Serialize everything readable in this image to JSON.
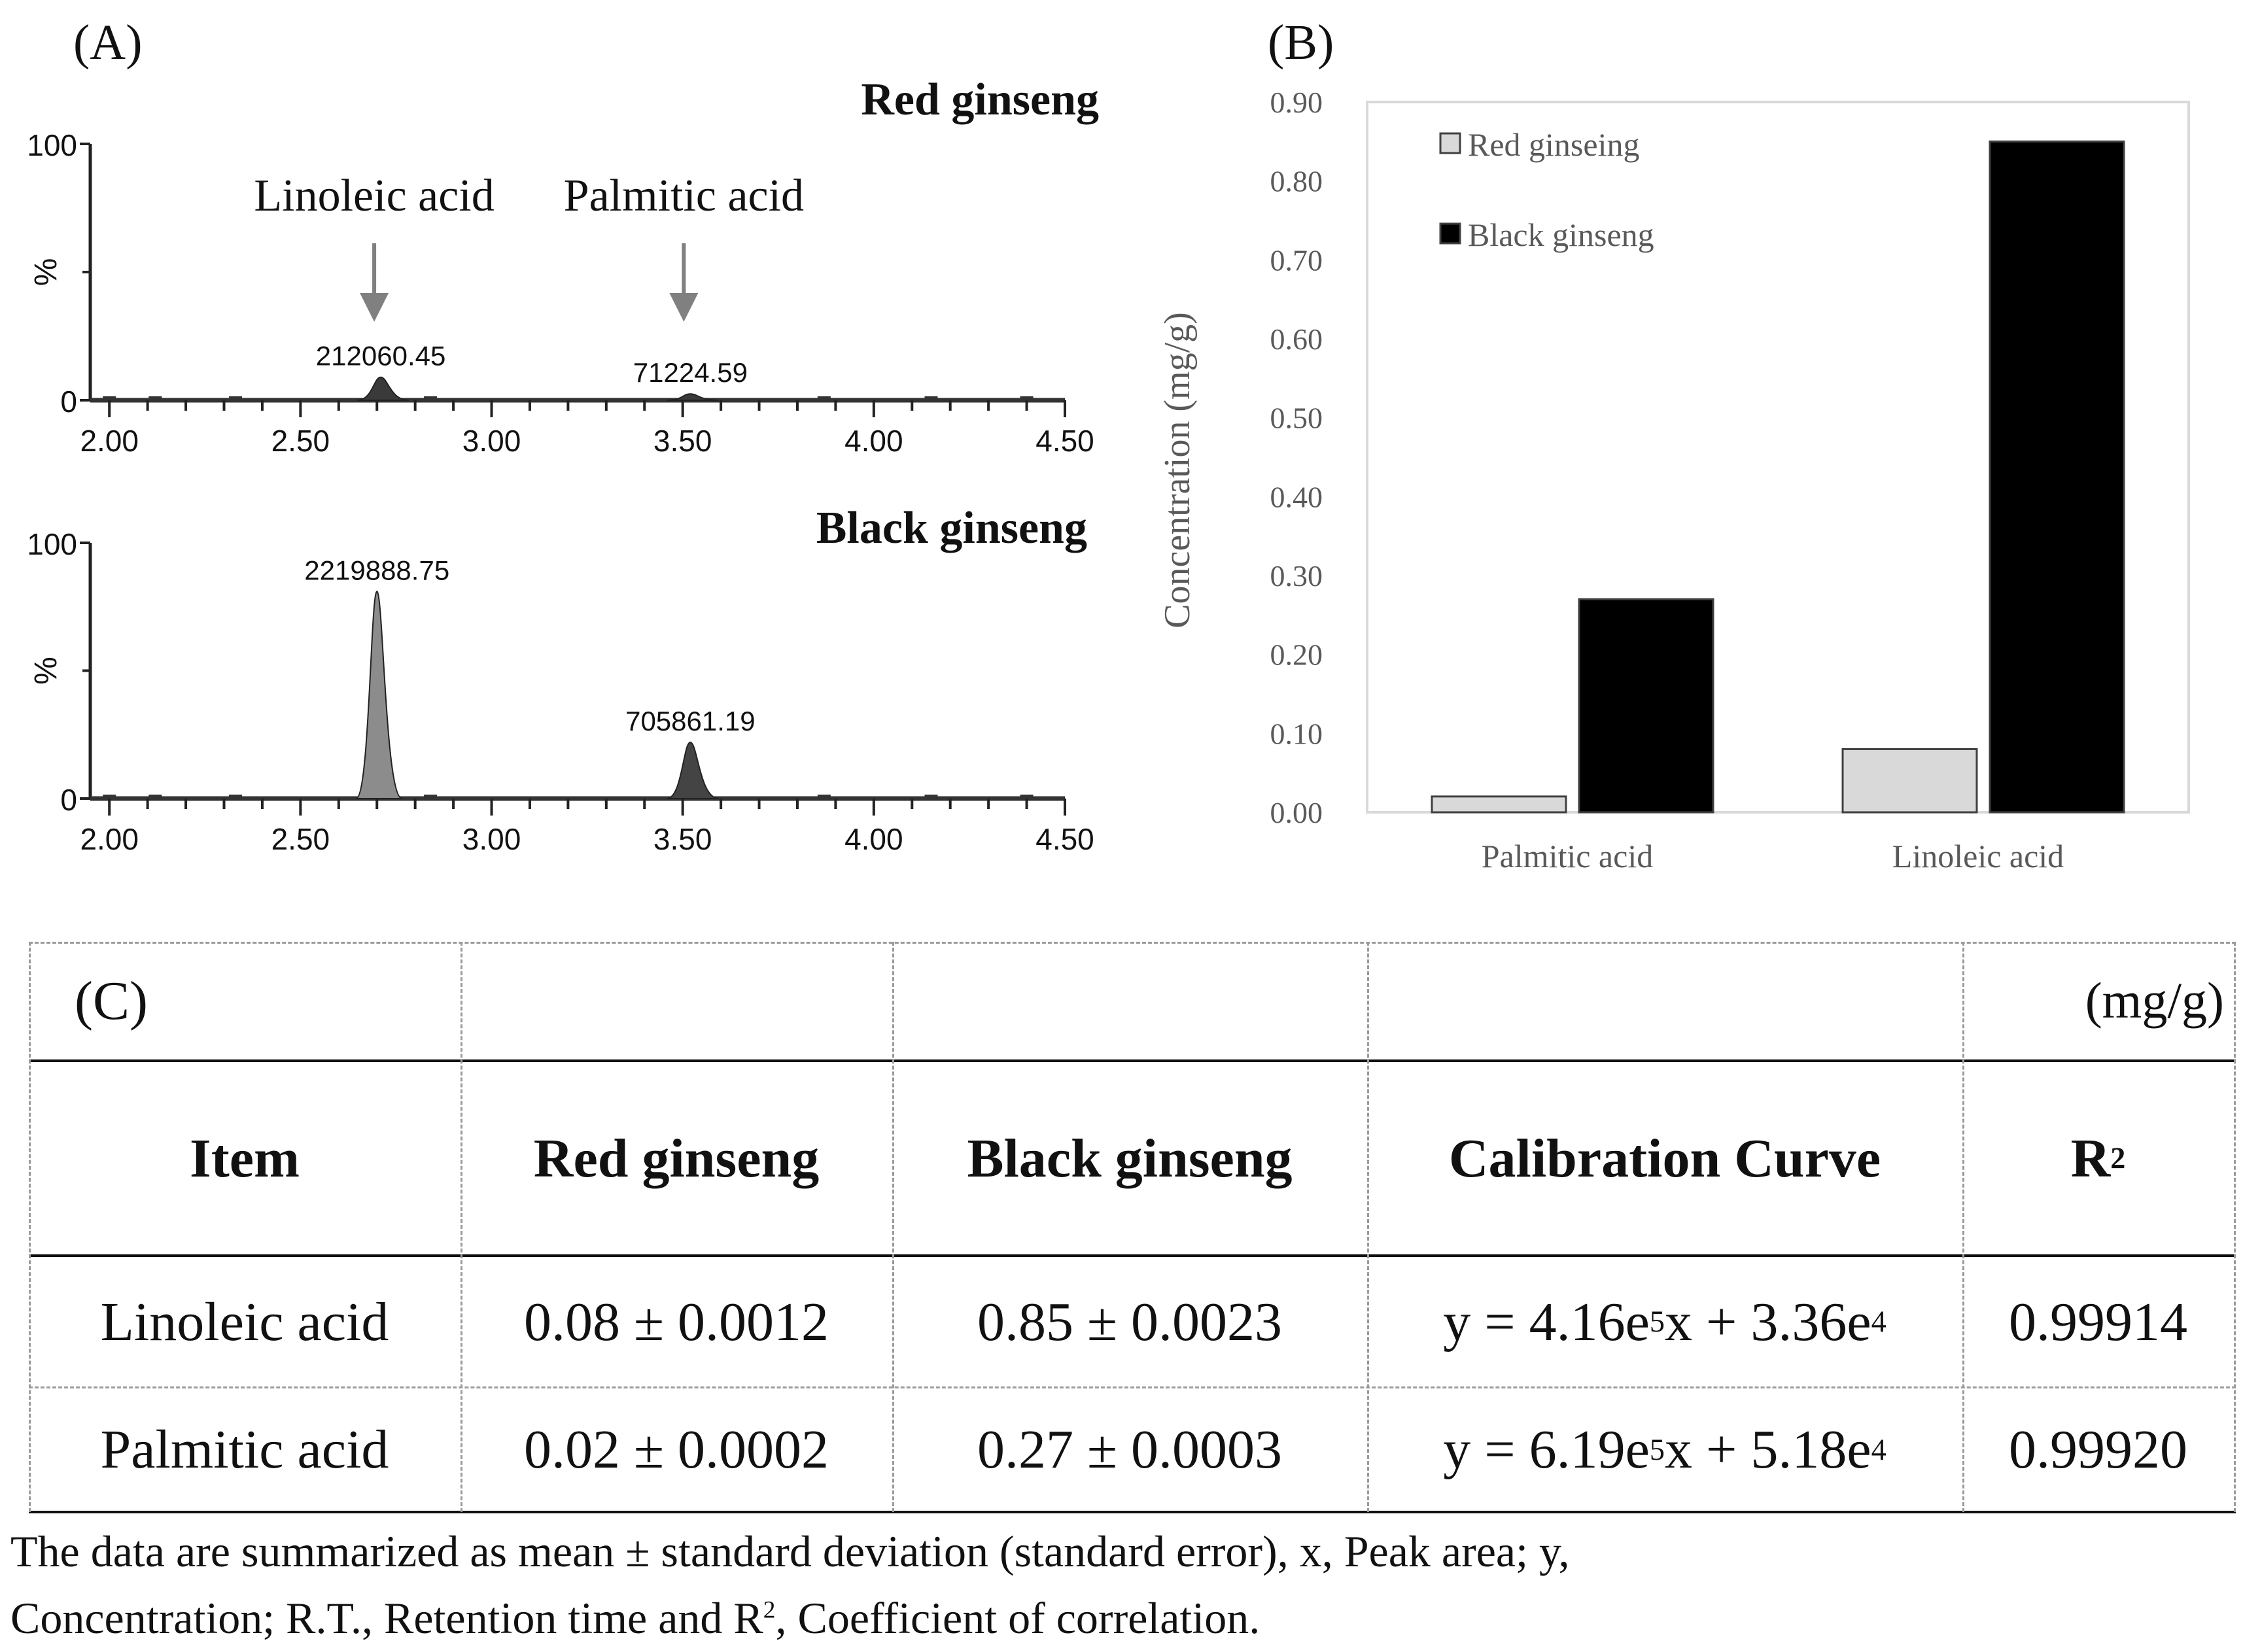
{
  "panel_labels": {
    "a": "(A)",
    "b": "(B)",
    "c": "(C)"
  },
  "chart_data": [
    {
      "type": "line",
      "title": "Red ginseng",
      "xlim": [
        1.95,
        4.5
      ],
      "ylim": [
        0,
        100
      ],
      "x_ticks": [
        "2.00",
        "2.50",
        "3.00",
        "3.50",
        "4.00",
        "4.50"
      ],
      "y_ticks": [
        "0",
        "100"
      ],
      "ylabel": "%",
      "series": [
        {
          "name": "Linoleic acid",
          "peak_x": 2.71,
          "peak_height_pct": 9,
          "peak_area_label": "212060.45",
          "color": "#3a3a3a"
        },
        {
          "name": "Palmitic acid",
          "peak_x": 3.52,
          "peak_height_pct": 2.5,
          "peak_area_label": "71224.59",
          "color": "#3a3a3a"
        }
      ],
      "annotations": [
        "Linoleic acid",
        "Palmitic acid"
      ]
    },
    {
      "type": "line",
      "title": "Black ginseng",
      "xlim": [
        1.95,
        4.5
      ],
      "ylim": [
        0,
        100
      ],
      "x_ticks": [
        "2.00",
        "2.50",
        "3.00",
        "3.50",
        "4.00",
        "4.50"
      ],
      "y_ticks": [
        "0",
        "100"
      ],
      "ylabel": "%",
      "series": [
        {
          "name": "Linoleic acid",
          "peak_x": 2.7,
          "peak_height_pct": 81,
          "peak_area_label": "2219888.75",
          "color": "#8c8c8c"
        },
        {
          "name": "Palmitic acid",
          "peak_x": 3.52,
          "peak_height_pct": 22,
          "peak_area_label": "705861.19",
          "color": "#444444"
        }
      ]
    },
    {
      "type": "bar",
      "ylabel": "Concentration (mg/g)",
      "categories": [
        "Palmitic acid",
        "Linoleic acid"
      ],
      "ylim": [
        0,
        0.9
      ],
      "y_ticks": [
        "0.00",
        "0.10",
        "0.20",
        "0.30",
        "0.40",
        "0.50",
        "0.60",
        "0.70",
        "0.80",
        "0.90"
      ],
      "series": [
        {
          "name": "Red ginseing",
          "values": [
            0.02,
            0.08
          ],
          "color": "#d9d9d9"
        },
        {
          "name": "Black ginseng",
          "values": [
            0.27,
            0.85
          ],
          "color": "#000000"
        }
      ],
      "legend": "top-left"
    },
    {
      "type": "table",
      "unit": "(mg/g)",
      "headers": [
        "Item",
        "Red ginseng",
        "Black ginseng",
        "Calibration Curve",
        "R²"
      ],
      "rows": [
        [
          "Linoleic acid",
          "0.08 ± 0.0012",
          "0.85 ± 0.0023",
          "y = 4.16e⁵x + 3.36e⁴",
          "0.99914"
        ],
        [
          "Palmitic acid",
          "0.02 ± 0.0002",
          "0.27 ± 0.0003",
          "y = 6.19e⁵x + 5.18e⁴",
          "0.99920"
        ]
      ]
    }
  ],
  "table": {
    "unit": "(mg/g)",
    "headers": {
      "item": "Item",
      "red": "Red ginseng",
      "black": "Black ginseng",
      "curve": "Calibration Curve",
      "r2_base": "R",
      "r2_sup": "2"
    },
    "rows": [
      {
        "item": "Linoleic acid",
        "red": "0.08 ± 0.0012",
        "black": "0.85 ± 0.0023",
        "curve_a": "y = 4.16e",
        "curve_a_sup": "5",
        "curve_b": "x + 3.36e",
        "curve_b_sup": "4",
        "r2": "0.99914"
      },
      {
        "item": "Palmitic acid",
        "red": "0.02 ± 0.0002",
        "black": "0.27 ± 0.0003",
        "curve_a": "y = 6.19e",
        "curve_a_sup": "5",
        "curve_b": "x + 5.18e",
        "curve_b_sup": "4",
        "r2": "0.99920"
      }
    ]
  },
  "footnote": {
    "line1": "The data are summarized as mean ± standard deviation (standard error), x, Peak area; y,",
    "line2a": "Concentration; R.T., Retention time and R",
    "line2sup": "2",
    "line2b": ", Coefficient of correlation."
  },
  "colors": {
    "axis": "#222222",
    "arrow": "#808080",
    "plot_border": "#d9d9d9"
  }
}
